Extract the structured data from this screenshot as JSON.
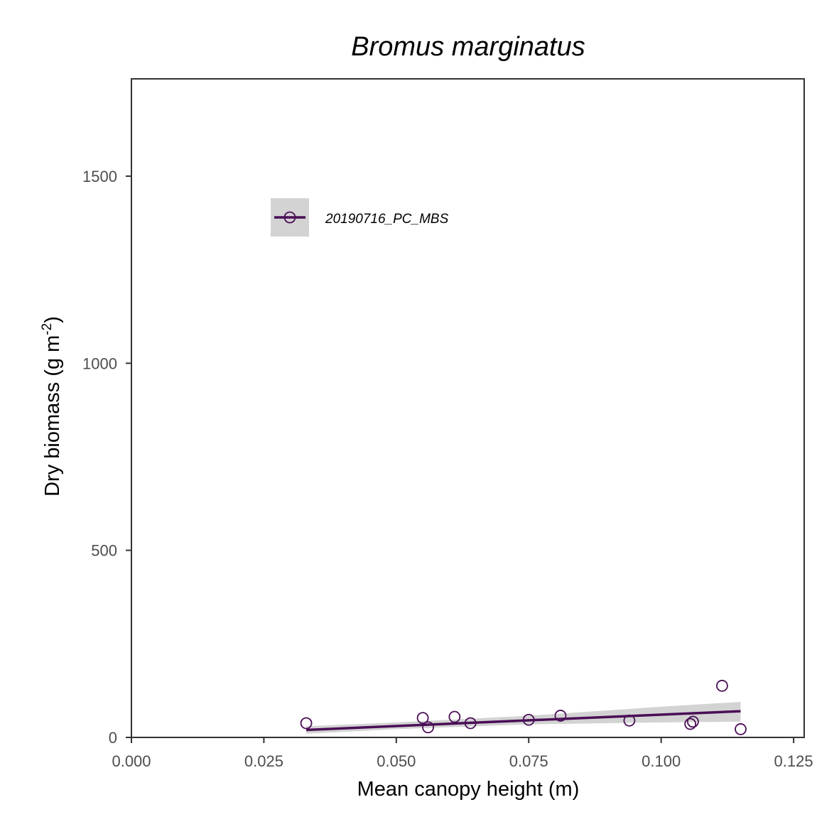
{
  "chart_data": {
    "type": "scatter",
    "title": "Bromus marginatus",
    "xlabel": "Mean canopy height (m)",
    "ylabel_main": "Dry biomass (g m",
    "ylabel_sup": "-2",
    "ylabel_close": ")",
    "xlim": [
      0,
      0.127
    ],
    "ylim": [
      0,
      1760
    ],
    "xticks": [
      0,
      0.025,
      0.05,
      0.075,
      0.1,
      0.125
    ],
    "xtick_labels": [
      "0.000",
      "0.025",
      "0.050",
      "0.075",
      "0.100",
      "0.125"
    ],
    "yticks": [
      0,
      500,
      1000,
      1500
    ],
    "ytick_labels": [
      "0",
      "500",
      "1000",
      "1500"
    ],
    "grid": false,
    "legend_position": "top-left",
    "series": [
      {
        "name": "20190716_PC_MBS",
        "color": "#4a0e56",
        "points": [
          {
            "x": 0.033,
            "y": 38
          },
          {
            "x": 0.055,
            "y": 52
          },
          {
            "x": 0.056,
            "y": 27
          },
          {
            "x": 0.061,
            "y": 55
          },
          {
            "x": 0.064,
            "y": 38
          },
          {
            "x": 0.075,
            "y": 47
          },
          {
            "x": 0.081,
            "y": 58
          },
          {
            "x": 0.094,
            "y": 45
          },
          {
            "x": 0.1055,
            "y": 36
          },
          {
            "x": 0.106,
            "y": 42
          },
          {
            "x": 0.1115,
            "y": 138
          },
          {
            "x": 0.115,
            "y": 22
          }
        ],
        "fit_line": {
          "x": [
            0.033,
            0.115
          ],
          "y": [
            20,
            70
          ]
        },
        "confidence_band": {
          "x": [
            0.033,
            0.05,
            0.075,
            0.1,
            0.115
          ],
          "lower": [
            10,
            22,
            35,
            40,
            42
          ],
          "upper": [
            30,
            40,
            58,
            82,
            95
          ]
        }
      }
    ],
    "band_color": "#d3d3d3"
  }
}
